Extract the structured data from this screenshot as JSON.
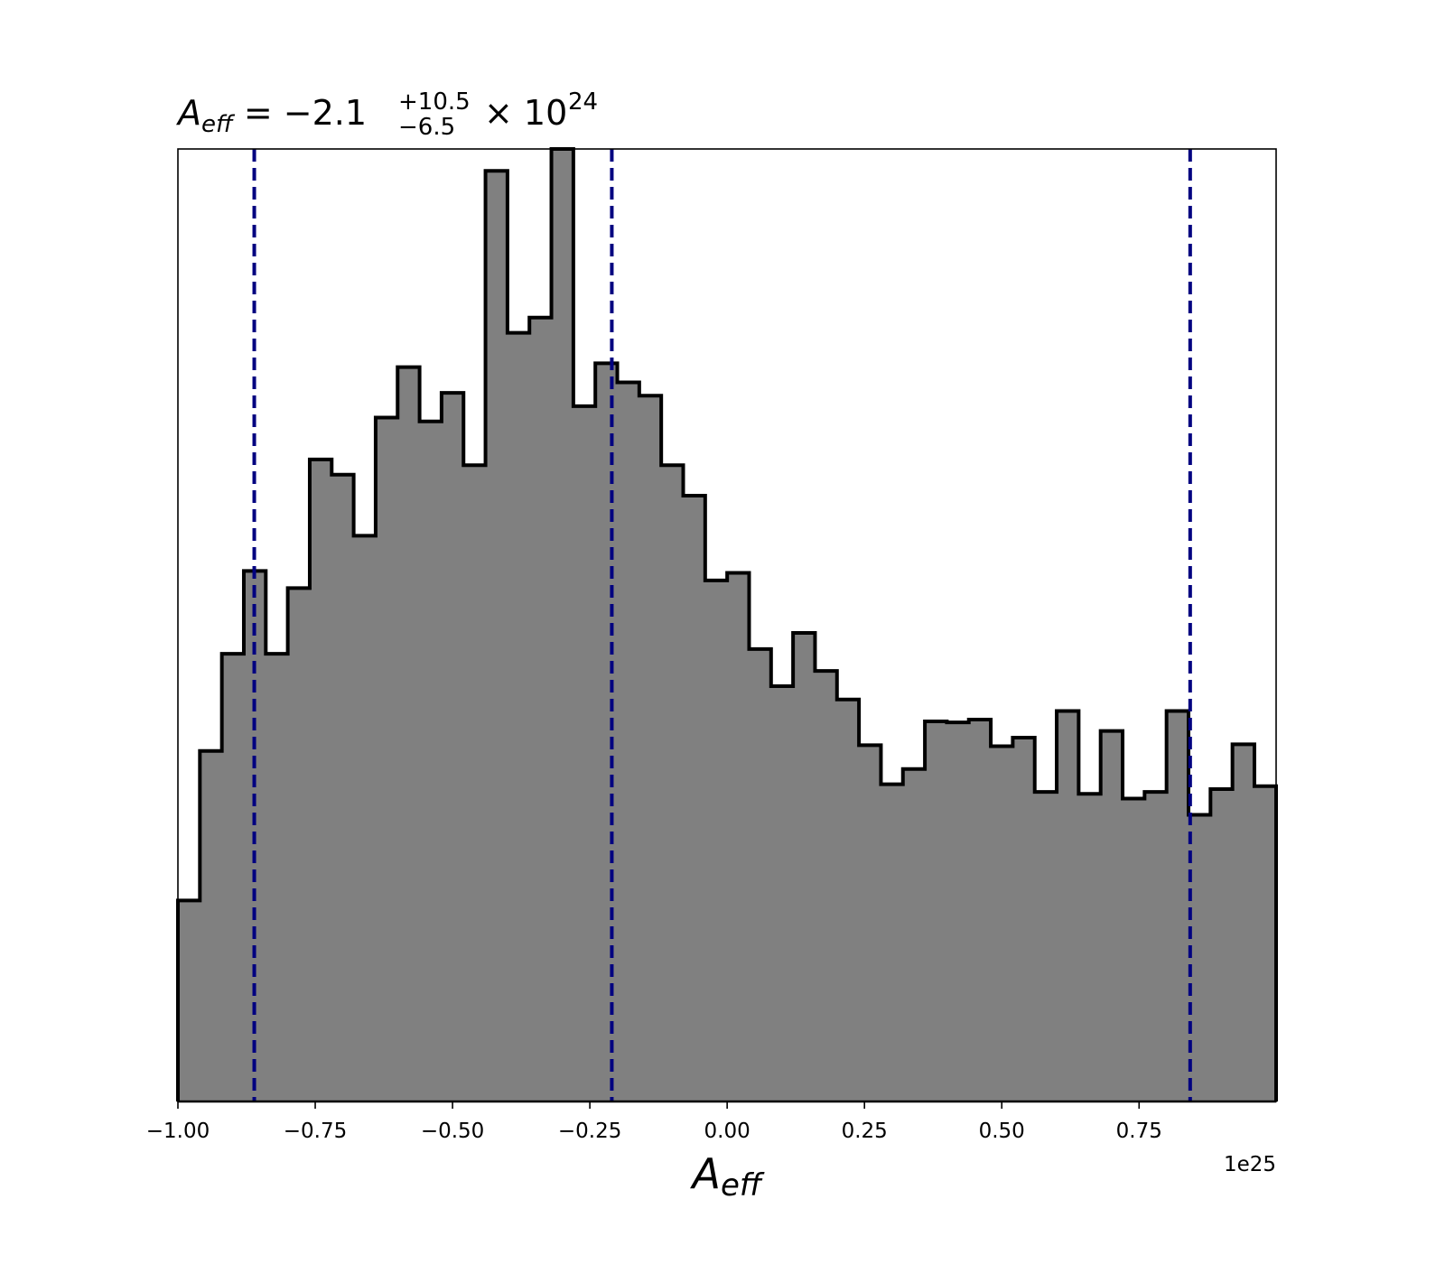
{
  "chart_data": {
    "type": "bar",
    "title": {
      "symbol": "A",
      "symbol_sub": "eff",
      "equals": " = −2.1",
      "upper": "+10.5",
      "lower": "−6.5",
      "times": "× 10",
      "exponent": "24"
    },
    "xlabel": {
      "symbol": "A",
      "sub": "eff"
    },
    "x_offset_label": "1e25",
    "xlim": [
      -1.0,
      0.9995
    ],
    "ylim": [
      0,
      1
    ],
    "x_ticks": [
      -1.0,
      -0.75,
      -0.5,
      -0.25,
      0.0,
      0.25,
      0.5,
      0.75
    ],
    "x_tick_labels": [
      "−1.00",
      "−0.75",
      "−0.50",
      "−0.25",
      "0.00",
      "0.25",
      "0.50",
      "0.75"
    ],
    "y_ticks_shown": false,
    "bin_edges_start": -1.0,
    "bin_width": 0.04,
    "bin_heights": [
      0.211,
      0.368,
      0.47,
      0.557,
      0.47,
      0.539,
      0.674,
      0.658,
      0.594,
      0.718,
      0.771,
      0.714,
      0.744,
      0.668,
      0.977,
      0.807,
      0.823,
      1.0,
      0.73,
      0.775,
      0.755,
      0.741,
      0.668,
      0.636,
      0.547,
      0.555,
      0.475,
      0.436,
      0.492,
      0.452,
      0.422,
      0.374,
      0.333,
      0.349,
      0.399,
      0.398,
      0.401,
      0.373,
      0.382,
      0.325,
      0.41,
      0.323,
      0.389,
      0.318,
      0.325,
      0.41,
      0.301,
      0.328,
      0.375,
      0.331
    ],
    "fill_color": "#808080",
    "edge_color": "#000000",
    "vlines": [
      -0.861,
      -0.21,
      0.843
    ],
    "vline_color": "#000080",
    "grid": false,
    "legend": "none"
  }
}
